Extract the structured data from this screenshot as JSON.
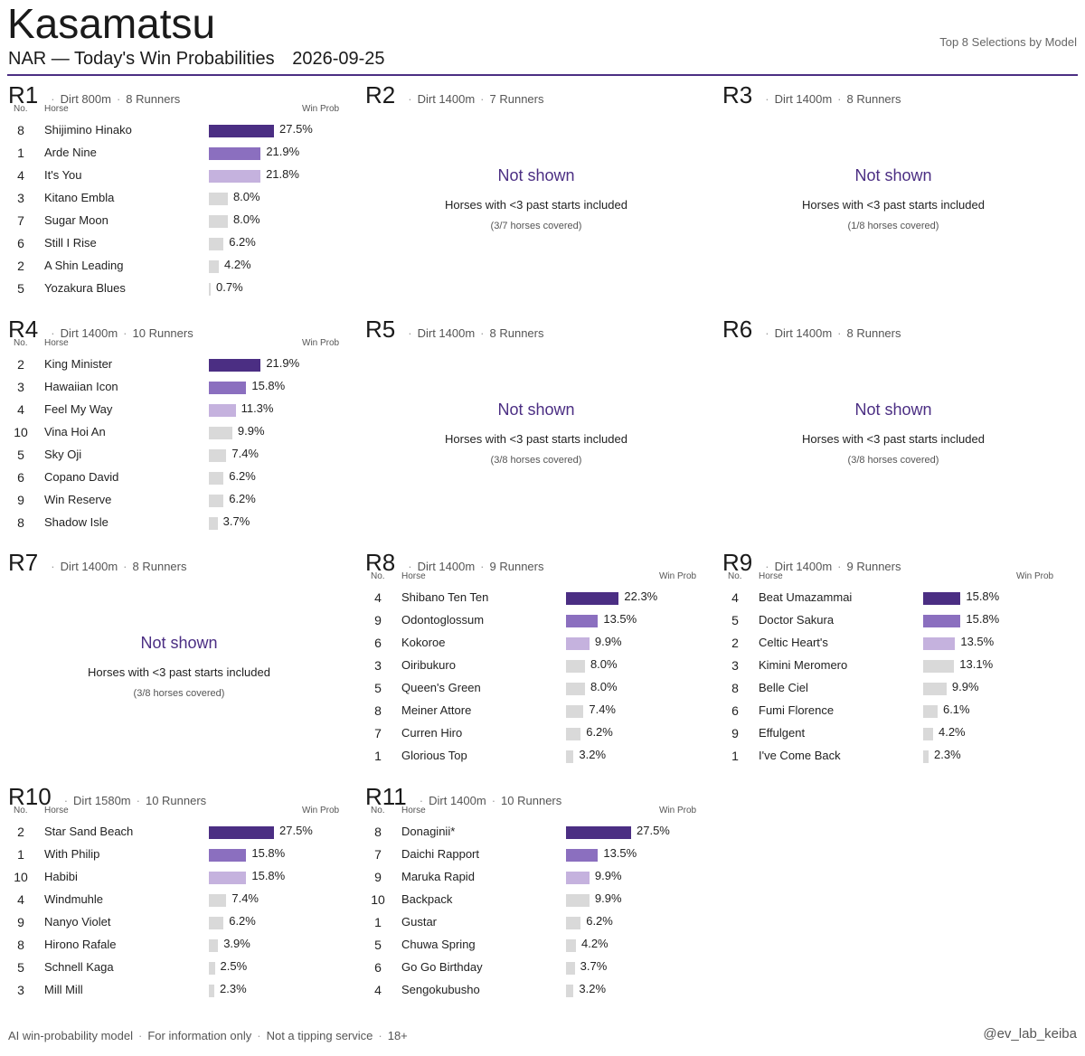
{
  "header": {
    "title": "Kasamatsu",
    "subtitle": "NAR — Today's Win Probabilities",
    "date": "2026-09-25",
    "top_right": "Top 8 Selections by Model"
  },
  "labels": {
    "col_no": "No.",
    "col_horse": "Horse",
    "col_prob": "Win Prob",
    "not_shown": "Not shown",
    "not_shown_note": "Horses with <3 past starts included"
  },
  "colors": {
    "rank1": "#4b2e83",
    "rank2": "#8b6fbf",
    "rank3": "#c5b2de",
    "other": "#d9d9d9",
    "accent": "#4b2e83"
  },
  "footer": {
    "items": [
      "AI win-probability model",
      "For information only",
      "Not a tipping service",
      "18+"
    ],
    "handle": "@ev_lab_keiba"
  },
  "chart_data": [
    {
      "type": "bar",
      "race": "R1",
      "surface": "Dirt 800m",
      "runners": "8 Runners",
      "shown": true,
      "rows": [
        {
          "no": "8",
          "horse": "Shijimino Hinako",
          "pct": "27.5%",
          "value": 27.5
        },
        {
          "no": "1",
          "horse": "Arde Nine",
          "pct": "21.9%",
          "value": 21.9
        },
        {
          "no": "4",
          "horse": "It's You",
          "pct": "21.8%",
          "value": 21.8
        },
        {
          "no": "3",
          "horse": "Kitano Embla",
          "pct": "8.0%",
          "value": 8.0
        },
        {
          "no": "7",
          "horse": "Sugar Moon",
          "pct": "8.0%",
          "value": 8.0
        },
        {
          "no": "6",
          "horse": "Still I Rise",
          "pct": "6.2%",
          "value": 6.2
        },
        {
          "no": "2",
          "horse": "A Shin Leading",
          "pct": "4.2%",
          "value": 4.2
        },
        {
          "no": "5",
          "horse": "Yozakura Blues",
          "pct": "0.7%",
          "value": 0.7
        }
      ]
    },
    {
      "type": "bar",
      "race": "R2",
      "surface": "Dirt 1400m",
      "runners": "7 Runners",
      "shown": false,
      "coverage": "(3/7 horses covered)"
    },
    {
      "type": "bar",
      "race": "R3",
      "surface": "Dirt 1400m",
      "runners": "8 Runners",
      "shown": false,
      "coverage": "(1/8 horses covered)"
    },
    {
      "type": "bar",
      "race": "R4",
      "surface": "Dirt 1400m",
      "runners": "10 Runners",
      "shown": true,
      "rows": [
        {
          "no": "2",
          "horse": "King Minister",
          "pct": "21.9%",
          "value": 21.9
        },
        {
          "no": "3",
          "horse": "Hawaiian Icon",
          "pct": "15.8%",
          "value": 15.8
        },
        {
          "no": "4",
          "horse": "Feel My Way",
          "pct": "11.3%",
          "value": 11.3
        },
        {
          "no": "10",
          "horse": "Vina Hoi An",
          "pct": "9.9%",
          "value": 9.9
        },
        {
          "no": "5",
          "horse": "Sky Oji",
          "pct": "7.4%",
          "value": 7.4
        },
        {
          "no": "6",
          "horse": "Copano David",
          "pct": "6.2%",
          "value": 6.2
        },
        {
          "no": "9",
          "horse": "Win Reserve",
          "pct": "6.2%",
          "value": 6.2
        },
        {
          "no": "8",
          "horse": "Shadow Isle",
          "pct": "3.7%",
          "value": 3.7
        }
      ]
    },
    {
      "type": "bar",
      "race": "R5",
      "surface": "Dirt 1400m",
      "runners": "8 Runners",
      "shown": false,
      "coverage": "(3/8 horses covered)"
    },
    {
      "type": "bar",
      "race": "R6",
      "surface": "Dirt 1400m",
      "runners": "8 Runners",
      "shown": false,
      "coverage": "(3/8 horses covered)"
    },
    {
      "type": "bar",
      "race": "R7",
      "surface": "Dirt 1400m",
      "runners": "8 Runners",
      "shown": false,
      "coverage": "(3/8 horses covered)"
    },
    {
      "type": "bar",
      "race": "R8",
      "surface": "Dirt 1400m",
      "runners": "9 Runners",
      "shown": true,
      "rows": [
        {
          "no": "4",
          "horse": "Shibano Ten Ten",
          "pct": "22.3%",
          "value": 22.3
        },
        {
          "no": "9",
          "horse": "Odontoglossum",
          "pct": "13.5%",
          "value": 13.5
        },
        {
          "no": "6",
          "horse": "Kokoroe",
          "pct": "9.9%",
          "value": 9.9
        },
        {
          "no": "3",
          "horse": "Oiribukuro",
          "pct": "8.0%",
          "value": 8.0
        },
        {
          "no": "5",
          "horse": "Queen's Green",
          "pct": "8.0%",
          "value": 8.0
        },
        {
          "no": "8",
          "horse": "Meiner Attore",
          "pct": "7.4%",
          "value": 7.4
        },
        {
          "no": "7",
          "horse": "Curren Hiro",
          "pct": "6.2%",
          "value": 6.2
        },
        {
          "no": "1",
          "horse": "Glorious Top",
          "pct": "3.2%",
          "value": 3.2
        }
      ]
    },
    {
      "type": "bar",
      "race": "R9",
      "surface": "Dirt 1400m",
      "runners": "9 Runners",
      "shown": true,
      "rows": [
        {
          "no": "4",
          "horse": "Beat Umazammai",
          "pct": "15.8%",
          "value": 15.8
        },
        {
          "no": "5",
          "horse": "Doctor Sakura",
          "pct": "15.8%",
          "value": 15.8
        },
        {
          "no": "2",
          "horse": "Celtic Heart's",
          "pct": "13.5%",
          "value": 13.5
        },
        {
          "no": "3",
          "horse": "Kimini Meromero",
          "pct": "13.1%",
          "value": 13.1
        },
        {
          "no": "8",
          "horse": "Belle Ciel",
          "pct": "9.9%",
          "value": 9.9
        },
        {
          "no": "6",
          "horse": "Fumi Florence",
          "pct": "6.1%",
          "value": 6.1
        },
        {
          "no": "9",
          "horse": "Effulgent",
          "pct": "4.2%",
          "value": 4.2
        },
        {
          "no": "1",
          "horse": "I've Come Back",
          "pct": "2.3%",
          "value": 2.3
        }
      ]
    },
    {
      "type": "bar",
      "race": "R10",
      "surface": "Dirt 1580m",
      "runners": "10 Runners",
      "shown": true,
      "rows": [
        {
          "no": "2",
          "horse": "Star Sand Beach",
          "pct": "27.5%",
          "value": 27.5
        },
        {
          "no": "1",
          "horse": "With Philip",
          "pct": "15.8%",
          "value": 15.8
        },
        {
          "no": "10",
          "horse": "Habibi",
          "pct": "15.8%",
          "value": 15.8
        },
        {
          "no": "4",
          "horse": "Windmuhle",
          "pct": "7.4%",
          "value": 7.4
        },
        {
          "no": "9",
          "horse": "Nanyo Violet",
          "pct": "6.2%",
          "value": 6.2
        },
        {
          "no": "8",
          "horse": "Hirono Rafale",
          "pct": "3.9%",
          "value": 3.9
        },
        {
          "no": "5",
          "horse": "Schnell Kaga",
          "pct": "2.5%",
          "value": 2.5
        },
        {
          "no": "3",
          "horse": "Mill Mill",
          "pct": "2.3%",
          "value": 2.3
        }
      ]
    },
    {
      "type": "bar",
      "race": "R11",
      "surface": "Dirt 1400m",
      "runners": "10 Runners",
      "shown": true,
      "rows": [
        {
          "no": "8",
          "horse": "Donaginii*",
          "pct": "27.5%",
          "value": 27.5
        },
        {
          "no": "7",
          "horse": "Daichi Rapport",
          "pct": "13.5%",
          "value": 13.5
        },
        {
          "no": "9",
          "horse": "Maruka Rapid",
          "pct": "9.9%",
          "value": 9.9
        },
        {
          "no": "10",
          "horse": "Backpack",
          "pct": "9.9%",
          "value": 9.9
        },
        {
          "no": "1",
          "horse": "Gustar",
          "pct": "6.2%",
          "value": 6.2
        },
        {
          "no": "5",
          "horse": "Chuwa Spring",
          "pct": "4.2%",
          "value": 4.2
        },
        {
          "no": "6",
          "horse": "Go Go Birthday",
          "pct": "3.7%",
          "value": 3.7
        },
        {
          "no": "4",
          "horse": "Sengokubusho",
          "pct": "3.2%",
          "value": 3.2
        }
      ]
    }
  ]
}
